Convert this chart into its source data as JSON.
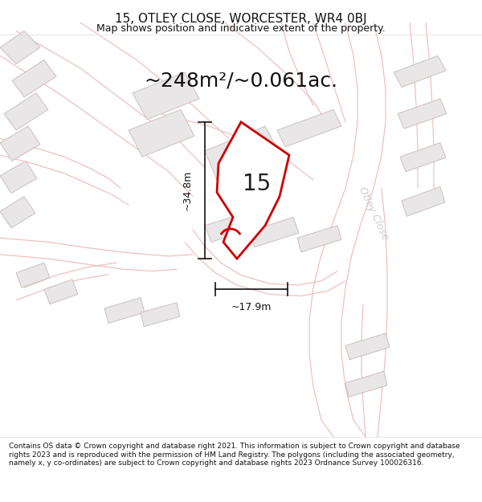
{
  "title": "15, OTLEY CLOSE, WORCESTER, WR4 0BJ",
  "subtitle": "Map shows position and indicative extent of the property.",
  "area_text": "~248m²/~0.061ac.",
  "number_label": "15",
  "dim_width": "~17.9m",
  "dim_height": "~34.8m",
  "street_label": "Otley Close",
  "footer_text": "Contains OS data © Crown copyright and database right 2021. This information is subject to Crown copyright and database rights 2023 and is reproduced with the permission of HM Land Registry. The polygons (including the associated geometry, namely x, y co-ordinates) are subject to Crown copyright and database rights 2023 Ordnance Survey 100026316.",
  "bg_color": "#ffffff",
  "map_bg": "#ffffff",
  "building_fill": "#e8e6e6",
  "building_edge": "#c8b8b8",
  "road_color": "#f0b8b8",
  "highlight_fill": "#ffffff",
  "highlight_edge": "#cc0000",
  "dim_line_color": "#111111",
  "title_color": "#111111",
  "footer_color": "#111111",
  "area_color": "#111111",
  "street_color": "#cccccc"
}
